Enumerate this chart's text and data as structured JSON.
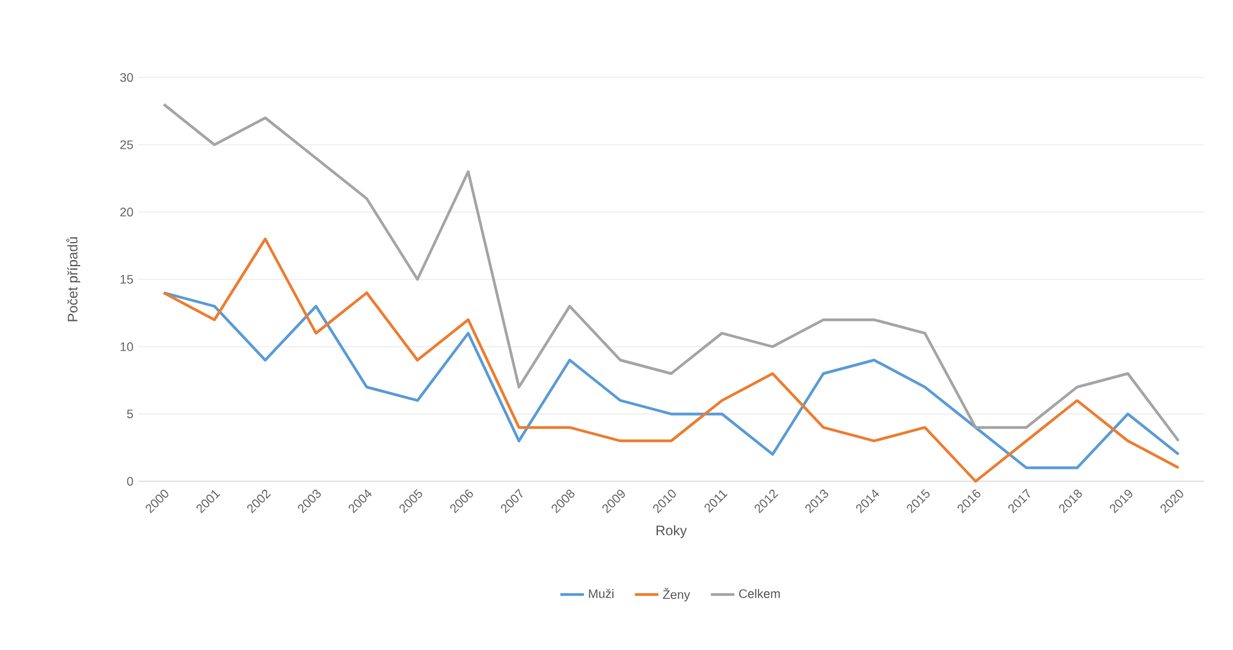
{
  "chart_data": {
    "type": "line",
    "xlabel": "Roky",
    "ylabel": "Počet případů",
    "categories": [
      "2000",
      "2001",
      "2002",
      "2003",
      "2004",
      "2005",
      "2006",
      "2007",
      "2008",
      "2009",
      "2010",
      "2011",
      "2012",
      "2013",
      "2014",
      "2015",
      "2016",
      "2017",
      "2018",
      "2019",
      "2020"
    ],
    "series": [
      {
        "name": "Muži",
        "color": "#5b9bd5",
        "values": [
          14,
          13,
          9,
          13,
          7,
          6,
          11,
          3,
          9,
          6,
          5,
          5,
          2,
          8,
          9,
          7,
          4,
          1,
          1,
          5,
          2
        ]
      },
      {
        "name": "Ženy",
        "color": "#ed7d31",
        "values": [
          14,
          12,
          18,
          11,
          14,
          9,
          12,
          4,
          4,
          3,
          3,
          6,
          8,
          4,
          3,
          4,
          0,
          3,
          6,
          3,
          1
        ]
      },
      {
        "name": "Celkem",
        "color": "#a5a5a5",
        "values": [
          28,
          25,
          27,
          24,
          21,
          15,
          23,
          7,
          13,
          9,
          8,
          11,
          10,
          12,
          12,
          11,
          4,
          4,
          7,
          8,
          3
        ]
      }
    ],
    "ylim": [
      0,
      30
    ],
    "yticks": [
      0,
      5,
      10,
      15,
      20,
      25,
      30
    ],
    "grid": "y",
    "legend": "bottom",
    "marker": "none",
    "line_style": "solid"
  }
}
